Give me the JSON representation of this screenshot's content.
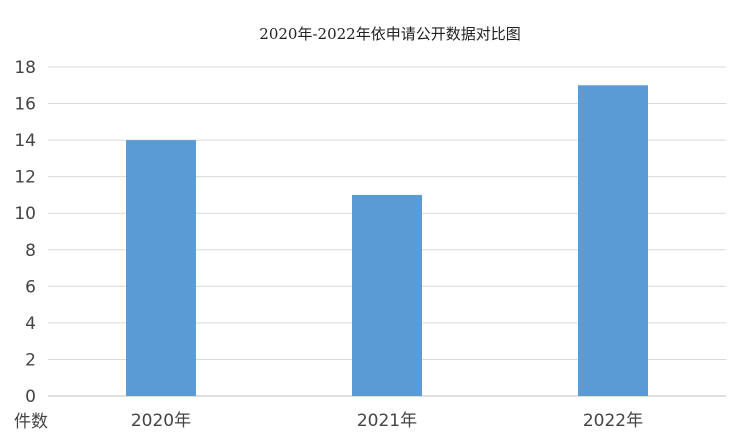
{
  "chart_data": {
    "type": "bar",
    "title": "2020年-2022年依申请公开数据对比图",
    "ylabel": "件数",
    "xlabel": "",
    "categories": [
      "2020年",
      "2021年",
      "2022年"
    ],
    "values": [
      14,
      11,
      17
    ],
    "ylim": [
      0,
      18
    ],
    "yticks": [
      0,
      2,
      4,
      6,
      8,
      10,
      12,
      14,
      16,
      18
    ],
    "grid": true,
    "legend": "none",
    "bar_color": "#5b9bd5"
  }
}
